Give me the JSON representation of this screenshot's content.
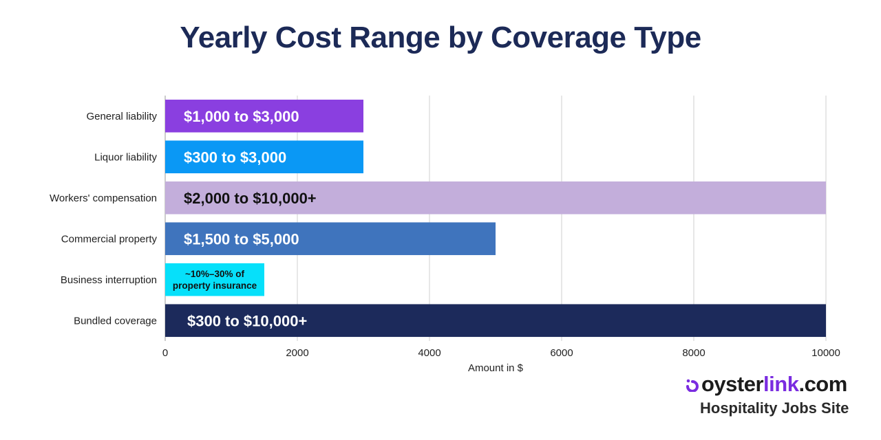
{
  "chart_data": {
    "type": "bar",
    "orientation": "horizontal",
    "title": "Yearly Cost Range by Coverage Type",
    "xlabel": "Amount in $",
    "ylabel": "",
    "xlim": [
      0,
      10000
    ],
    "xticks": [
      0,
      2000,
      4000,
      6000,
      8000,
      10000
    ],
    "grid": true,
    "categories": [
      "General liability",
      "Liquor liability",
      "Workers' compensation",
      "Commercial property",
      "Business interruption",
      "Bundled coverage"
    ],
    "values": [
      3000,
      3000,
      10000,
      5000,
      1500,
      10000
    ],
    "bar_labels": [
      [
        "$1,000 to $3,000"
      ],
      [
        "$300 to $3,000"
      ],
      [
        "$2,000 to $10,000+"
      ],
      [
        "$1,500 to $5,000"
      ],
      [
        "~10%–30% of",
        "property insurance"
      ],
      [
        "$300 to $10,000+"
      ]
    ],
    "colors": [
      "#8a3fe0",
      "#0a98f5",
      "#c3aedb",
      "#3f74bd",
      "#06e0fa",
      "#1c2a5b"
    ],
    "label_colors": [
      "#ffffff",
      "#ffffff",
      "#111111",
      "#ffffff",
      "#111111",
      "#ffffff"
    ]
  },
  "branding": {
    "logo_left": "oyster",
    "logo_mid": "link",
    "logo_right": ".com",
    "tagline": "Hospitality Jobs Site",
    "accent_color": "#7a2ce0"
  }
}
